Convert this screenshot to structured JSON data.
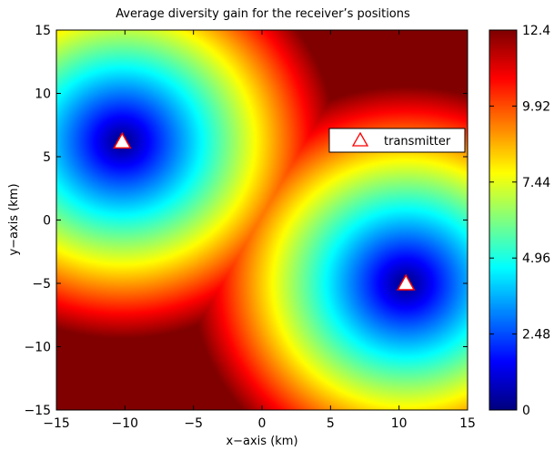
{
  "chart_data": {
    "type": "heatmap",
    "title": "Average diversity gain for the receiver’s positions",
    "xlabel": "x−axis (km)",
    "ylabel": "y−axis (km)",
    "xlim": [
      -15,
      15
    ],
    "ylim": [
      -15,
      15
    ],
    "x_ticks": [
      "−15",
      "−10",
      "−5",
      "0",
      "5",
      "10",
      "15"
    ],
    "y_ticks": [
      "15",
      "10",
      "5",
      "0",
      "−5",
      "−10",
      "−15"
    ],
    "colorbar": {
      "range": [
        0,
        12.4
      ],
      "colormap": "jet",
      "ticks": [
        "12.4",
        "9.92",
        "7.44",
        "4.96",
        "2.48",
        "0"
      ]
    },
    "transmitters": [
      {
        "x": -10.2,
        "y": 6.2
      },
      {
        "x": 10.5,
        "y": -5.0
      }
    ],
    "legend": {
      "label": "transmitter",
      "marker": "triangle",
      "marker_color": "#ff0000",
      "position": "right, above center"
    },
    "field": {
      "description_shape": "gain rises from 0 at each transmitter to ~12.4 along the perpendicular bisector",
      "max_value": 12.4,
      "scale": 0.55
    }
  }
}
